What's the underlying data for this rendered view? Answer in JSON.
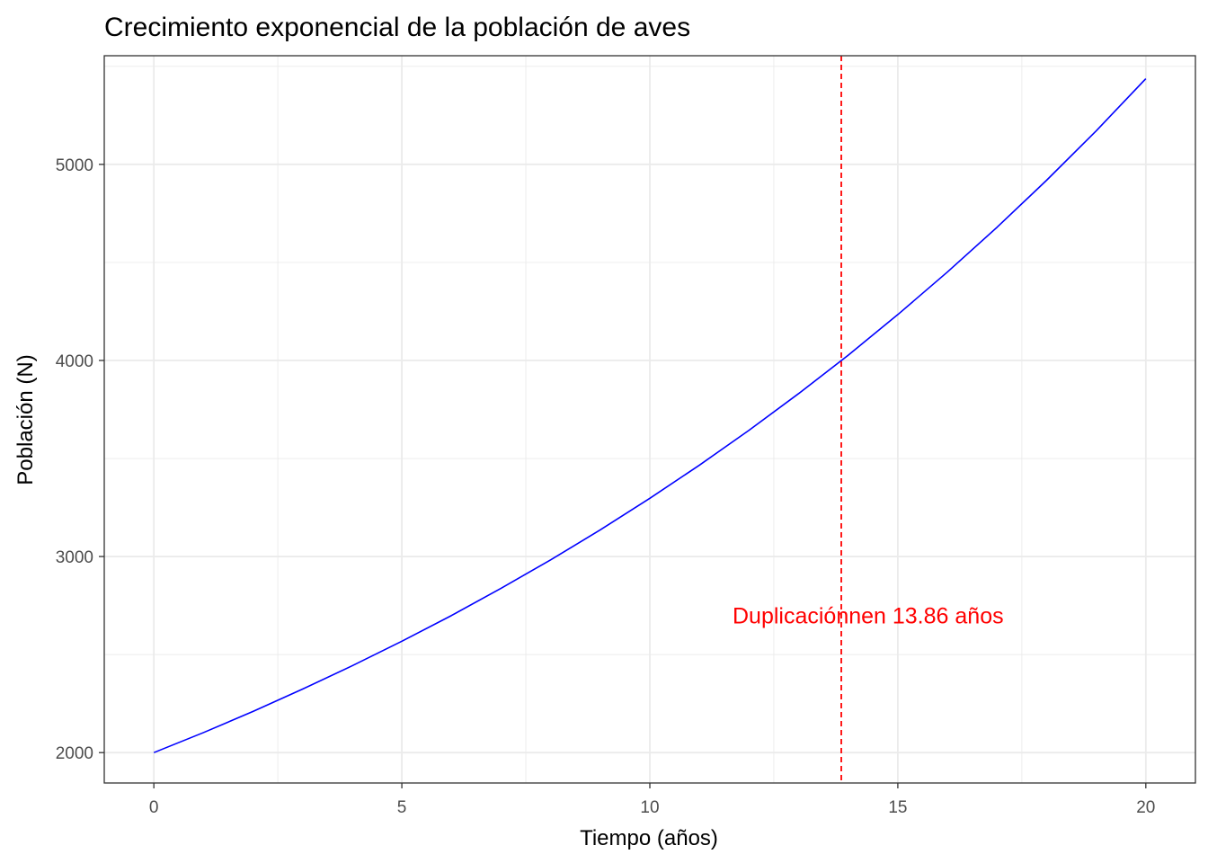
{
  "chart_data": {
    "type": "line",
    "title": "Crecimiento exponencial de la población de aves",
    "xlabel": "Tiempo (años)",
    "ylabel": "Población (N)",
    "xlim": [
      -1,
      21
    ],
    "ylim": [
      1845,
      5554
    ],
    "x_ticks": [
      0,
      5,
      10,
      15,
      20
    ],
    "x_tick_labels": [
      "0",
      "5",
      "10",
      "15",
      "20"
    ],
    "y_ticks": [
      2000,
      3000,
      4000,
      5000
    ],
    "y_tick_labels": [
      "2000",
      "3000",
      "4000",
      "5000"
    ],
    "grid": true,
    "series": [
      {
        "color": "#0000ff",
        "x": [
          0,
          1,
          2,
          3,
          4,
          5,
          6,
          7,
          8,
          9,
          10,
          11,
          12,
          13,
          14,
          15,
          16,
          17,
          18,
          19,
          20
        ],
        "y": [
          2000,
          2102,
          2210,
          2324,
          2443,
          2568,
          2699,
          2838,
          2983,
          3136,
          3297,
          3466,
          3644,
          3831,
          4027,
          4234,
          4451,
          4679,
          4919,
          5171,
          5437
        ]
      }
    ],
    "vline": {
      "x": 13.86,
      "color": "#ff0000",
      "style": "dashed"
    },
    "annotation": {
      "text": "Duplicaciónnen 13.86 años",
      "x": 14.4,
      "y": 2700,
      "color": "#ff0000"
    }
  }
}
